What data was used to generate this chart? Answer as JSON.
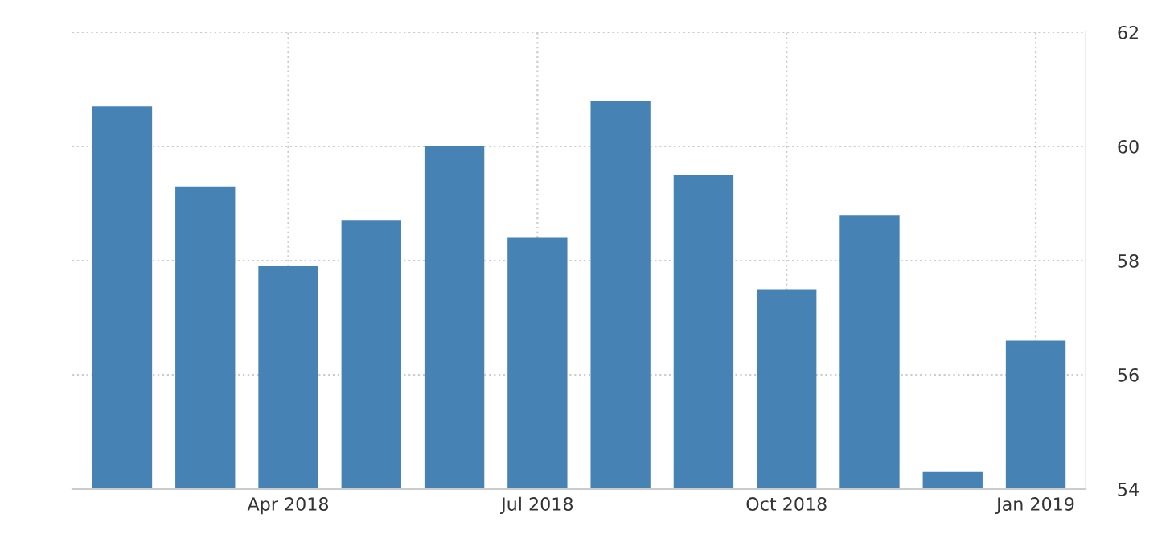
{
  "chart_data": {
    "type": "bar",
    "categories": [
      null,
      null,
      "Apr 2018",
      null,
      null,
      "Jul 2018",
      null,
      null,
      "Oct 2018",
      null,
      null,
      "Jan 2019"
    ],
    "values": [
      60.7,
      59.3,
      57.9,
      58.7,
      60.0,
      58.4,
      60.8,
      59.5,
      57.5,
      58.8,
      54.3,
      56.6
    ],
    "color": "#4682b4",
    "ylim": [
      54,
      62
    ],
    "yticks": [
      54,
      56,
      58,
      60,
      62
    ],
    "grid": true
  }
}
